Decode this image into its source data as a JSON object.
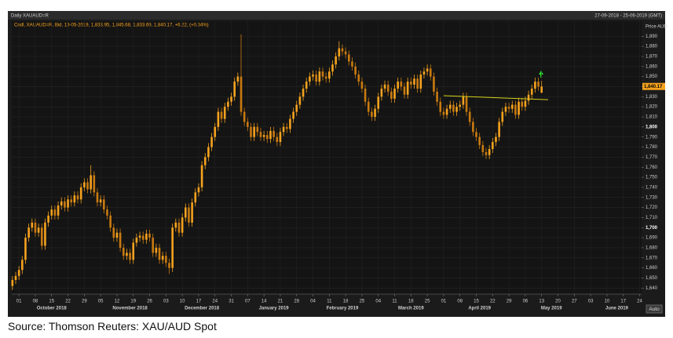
{
  "chart_data": {
    "type": "candlestick",
    "title": "Daily XAUAUD=R",
    "date_range": "27-09-2018 - 25-06-2019 (GMT)",
    "legend": "Cndl, XAUAUD=R, Bid, 13-05-2019, 1,833.95, 1,845.68, 1,833.69, 1,840.17, +6.22, (+0.34%)",
    "y_label": "Price AUD",
    "source": "Source: Thomson Reuters:  XAU/AUD Spot",
    "auto_button": "Auto",
    "up_color": "#f5a21e",
    "down_color": "#c97a10",
    "grid": true,
    "x": [
      -2,
      -1,
      0,
      1,
      2,
      3,
      4,
      5,
      6,
      7,
      8,
      9,
      10,
      11,
      12,
      13,
      14,
      15,
      16,
      17,
      18,
      19,
      20,
      21,
      22,
      23,
      24,
      25,
      26,
      27,
      28,
      29,
      30,
      31,
      32,
      33,
      34,
      35,
      36,
      37,
      38,
      39,
      40,
      41,
      42,
      43,
      44,
      45,
      46,
      47,
      48,
      49,
      50,
      51,
      52,
      53,
      54,
      55,
      56,
      57,
      58,
      59,
      60,
      61,
      62,
      63,
      64,
      65,
      66,
      67,
      68,
      69,
      70,
      71,
      72,
      73,
      74,
      75,
      76,
      77,
      78,
      79,
      80,
      81,
      82,
      83,
      84,
      85,
      86,
      87,
      88,
      89,
      90,
      91,
      92,
      93,
      94,
      95,
      96,
      97,
      98,
      99,
      100,
      101,
      102,
      103,
      104,
      105,
      106,
      107,
      108,
      109,
      110,
      111,
      112,
      113,
      114,
      115,
      116,
      117,
      118,
      119,
      120,
      121,
      122,
      123,
      124,
      125,
      126,
      127,
      128,
      129,
      130,
      131,
      132,
      133,
      134,
      135,
      136,
      137,
      138,
      139,
      140,
      141,
      142,
      143,
      144,
      145,
      146,
      147,
      148,
      149,
      150,
      151,
      152,
      153,
      154,
      155,
      156,
      157,
      158,
      159,
      160
    ],
    "open": [
      1642,
      1648,
      1652,
      1658,
      1668,
      1690,
      1700,
      1705,
      1695,
      1700,
      1682,
      1705,
      1712,
      1718,
      1712,
      1722,
      1726,
      1720,
      1728,
      1725,
      1732,
      1728,
      1740,
      1745,
      1738,
      1752,
      1735,
      1725,
      1728,
      1718,
      1712,
      1700,
      1690,
      1695,
      1680,
      1672,
      1675,
      1668,
      1685,
      1690,
      1692,
      1688,
      1694,
      1690,
      1675,
      1680,
      1668,
      1672,
      1665,
      1660,
      1700,
      1705,
      1695,
      1710,
      1720,
      1705,
      1725,
      1735,
      1740,
      1762,
      1770,
      1780,
      1790,
      1800,
      1815,
      1808,
      1820,
      1825,
      1830,
      1845,
      1850,
      1815,
      1805,
      1800,
      1790,
      1800,
      1795,
      1790,
      1792,
      1788,
      1796,
      1790,
      1785,
      1795,
      1800,
      1798,
      1808,
      1815,
      1822,
      1830,
      1838,
      1845,
      1850,
      1852,
      1845,
      1855,
      1850,
      1848,
      1855,
      1862,
      1870,
      1878,
      1875,
      1872,
      1865,
      1860,
      1852,
      1845,
      1838,
      1825,
      1815,
      1810,
      1818,
      1830,
      1838,
      1842,
      1835,
      1828,
      1838,
      1845,
      1840,
      1832,
      1845,
      1842,
      1848,
      1838,
      1852,
      1855,
      1858,
      1850,
      1835,
      1825,
      1815,
      1812,
      1818,
      1822,
      1815,
      1820,
      1822,
      1830,
      1815,
      1805,
      1795,
      1790,
      1782,
      1775,
      1772,
      1778,
      1785,
      1790,
      1805,
      1815,
      1820,
      1818,
      1822,
      1812,
      1825,
      1820,
      1826,
      1832,
      1838,
      1845,
      1833.95
    ],
    "high": [
      1652,
      1656,
      1662,
      1672,
      1694,
      1704,
      1709,
      1709,
      1704,
      1704,
      1709,
      1716,
      1722,
      1722,
      1726,
      1730,
      1730,
      1732,
      1732,
      1736,
      1736,
      1744,
      1749,
      1749,
      1762,
      1756,
      1739,
      1732,
      1732,
      1722,
      1716,
      1704,
      1699,
      1699,
      1684,
      1679,
      1679,
      1689,
      1694,
      1696,
      1696,
      1698,
      1698,
      1694,
      1684,
      1684,
      1676,
      1676,
      1669,
      1704,
      1709,
      1709,
      1714,
      1724,
      1724,
      1729,
      1739,
      1744,
      1766,
      1774,
      1784,
      1794,
      1804,
      1819,
      1819,
      1824,
      1829,
      1834,
      1849,
      1854,
      1892,
      1819,
      1809,
      1804,
      1804,
      1804,
      1799,
      1796,
      1796,
      1800,
      1800,
      1794,
      1799,
      1804,
      1804,
      1812,
      1819,
      1826,
      1834,
      1842,
      1849,
      1854,
      1856,
      1856,
      1859,
      1859,
      1854,
      1859,
      1866,
      1874,
      1885,
      1882,
      1879,
      1876,
      1869,
      1864,
      1856,
      1849,
      1842,
      1829,
      1819,
      1822,
      1834,
      1842,
      1846,
      1846,
      1839,
      1842,
      1849,
      1849,
      1844,
      1849,
      1849,
      1852,
      1852,
      1856,
      1859,
      1862,
      1862,
      1854,
      1839,
      1829,
      1819,
      1822,
      1826,
      1826,
      1824,
      1826,
      1834,
      1834,
      1819,
      1809,
      1799,
      1794,
      1786,
      1779,
      1782,
      1789,
      1794,
      1809,
      1819,
      1824,
      1824,
      1826,
      1826,
      1829,
      1829,
      1830,
      1836,
      1842,
      1849,
      1849,
      1845.68
    ],
    "low": [
      1638,
      1644,
      1648,
      1654,
      1664,
      1686,
      1696,
      1691,
      1691,
      1678,
      1678,
      1701,
      1708,
      1708,
      1708,
      1718,
      1716,
      1716,
      1721,
      1721,
      1724,
      1724,
      1736,
      1734,
      1734,
      1731,
      1721,
      1721,
      1714,
      1708,
      1696,
      1686,
      1686,
      1676,
      1668,
      1668,
      1664,
      1664,
      1681,
      1686,
      1684,
      1684,
      1686,
      1671,
      1671,
      1664,
      1664,
      1661,
      1654,
      1656,
      1696,
      1691,
      1691,
      1706,
      1701,
      1701,
      1721,
      1731,
      1736,
      1758,
      1766,
      1776,
      1786,
      1796,
      1804,
      1804,
      1816,
      1821,
      1826,
      1841,
      1811,
      1801,
      1796,
      1786,
      1786,
      1791,
      1786,
      1786,
      1784,
      1784,
      1786,
      1781,
      1781,
      1791,
      1794,
      1794,
      1804,
      1811,
      1818,
      1826,
      1834,
      1841,
      1846,
      1841,
      1841,
      1846,
      1844,
      1844,
      1851,
      1858,
      1866,
      1871,
      1868,
      1861,
      1856,
      1848,
      1841,
      1834,
      1821,
      1811,
      1806,
      1806,
      1814,
      1826,
      1834,
      1831,
      1824,
      1824,
      1834,
      1836,
      1828,
      1828,
      1838,
      1838,
      1834,
      1834,
      1848,
      1851,
      1846,
      1831,
      1821,
      1811,
      1808,
      1808,
      1814,
      1811,
      1811,
      1816,
      1818,
      1811,
      1801,
      1791,
      1786,
      1778,
      1771,
      1768,
      1768,
      1774,
      1781,
      1786,
      1801,
      1811,
      1814,
      1814,
      1808,
      1808,
      1816,
      1816,
      1822,
      1828,
      1834,
      1836,
      1833.69
    ],
    "close": [
      1648,
      1652,
      1658,
      1668,
      1690,
      1700,
      1705,
      1695,
      1700,
      1682,
      1705,
      1712,
      1718,
      1712,
      1722,
      1726,
      1720,
      1728,
      1725,
      1732,
      1728,
      1740,
      1745,
      1738,
      1752,
      1735,
      1725,
      1728,
      1718,
      1712,
      1700,
      1690,
      1695,
      1680,
      1672,
      1675,
      1668,
      1685,
      1690,
      1692,
      1688,
      1694,
      1690,
      1675,
      1680,
      1668,
      1672,
      1665,
      1660,
      1700,
      1705,
      1695,
      1710,
      1720,
      1705,
      1725,
      1735,
      1740,
      1762,
      1770,
      1780,
      1790,
      1800,
      1815,
      1808,
      1820,
      1825,
      1830,
      1845,
      1850,
      1815,
      1805,
      1800,
      1790,
      1800,
      1795,
      1790,
      1792,
      1788,
      1796,
      1790,
      1785,
      1795,
      1800,
      1798,
      1808,
      1815,
      1822,
      1830,
      1838,
      1845,
      1850,
      1852,
      1845,
      1855,
      1850,
      1848,
      1855,
      1862,
      1870,
      1878,
      1875,
      1872,
      1865,
      1860,
      1852,
      1845,
      1838,
      1825,
      1815,
      1810,
      1818,
      1830,
      1838,
      1842,
      1835,
      1828,
      1838,
      1845,
      1840,
      1832,
      1845,
      1842,
      1848,
      1838,
      1852,
      1855,
      1858,
      1850,
      1835,
      1825,
      1815,
      1812,
      1818,
      1822,
      1815,
      1820,
      1822,
      1830,
      1815,
      1805,
      1795,
      1790,
      1782,
      1775,
      1772,
      1778,
      1785,
      1790,
      1805,
      1815,
      1820,
      1818,
      1822,
      1812,
      1825,
      1820,
      1826,
      1832,
      1838,
      1845,
      1840,
      1840.17
    ],
    "price_tag": {
      "value": 1840.17,
      "label": "1,840.17"
    },
    "trend_line": {
      "x": [
        130,
        162
      ],
      "values": [
        1831,
        1827
      ],
      "color": "#d4d21a"
    },
    "xlim": [
      -2.2,
      190.6
    ],
    "ylim": [
      1634,
      1905
    ],
    "xticks": [
      {
        "value": 0,
        "label": "01"
      },
      {
        "value": 5,
        "label": "08"
      },
      {
        "value": 10,
        "label": "15"
      },
      {
        "value": 15,
        "label": "22"
      },
      {
        "value": 20,
        "label": "29"
      },
      {
        "value": 25,
        "label": "05"
      },
      {
        "value": 30,
        "label": "12"
      },
      {
        "value": 35,
        "label": "19"
      },
      {
        "value": 40,
        "label": "26"
      },
      {
        "value": 45,
        "label": "03"
      },
      {
        "value": 50,
        "label": "10"
      },
      {
        "value": 55,
        "label": "17"
      },
      {
        "value": 60,
        "label": "24"
      },
      {
        "value": 65,
        "label": "31"
      },
      {
        "value": 70,
        "label": "07"
      },
      {
        "value": 75,
        "label": "14"
      },
      {
        "value": 80,
        "label": "21"
      },
      {
        "value": 85,
        "label": "28"
      },
      {
        "value": 90,
        "label": "04"
      },
      {
        "value": 95,
        "label": "11"
      },
      {
        "value": 100,
        "label": "18"
      },
      {
        "value": 105,
        "label": "25"
      },
      {
        "value": 110,
        "label": "04"
      },
      {
        "value": 115,
        "label": "11"
      },
      {
        "value": 120,
        "label": "18"
      },
      {
        "value": 125,
        "label": "25"
      },
      {
        "value": 130,
        "label": "01"
      },
      {
        "value": 135,
        "label": "08"
      },
      {
        "value": 140,
        "label": "15"
      },
      {
        "value": 145,
        "label": "22"
      },
      {
        "value": 150,
        "label": "29"
      },
      {
        "value": 155,
        "label": "06"
      },
      {
        "value": 160,
        "label": "13"
      },
      {
        "value": 165,
        "label": "20"
      },
      {
        "value": 170,
        "label": "27"
      },
      {
        "value": 175,
        "label": "03"
      },
      {
        "value": 180,
        "label": "10"
      },
      {
        "value": 185,
        "label": "17"
      },
      {
        "value": 190,
        "label": "24"
      }
    ],
    "month_labels": [
      {
        "value": 10,
        "label": "October 2018"
      },
      {
        "value": 34,
        "label": "November 2018"
      },
      {
        "value": 56,
        "label": "December 2018"
      },
      {
        "value": 78,
        "label": "January 2019"
      },
      {
        "value": 99,
        "label": "February 2019"
      },
      {
        "value": 120,
        "label": "March 2019"
      },
      {
        "value": 141,
        "label": "April 2019"
      },
      {
        "value": 163,
        "label": "May 2019"
      },
      {
        "value": 183,
        "label": "June 2019"
      }
    ],
    "yticks": [
      {
        "value": 1640,
        "label": "1,640"
      },
      {
        "value": 1650,
        "label": "1,650"
      },
      {
        "value": 1660,
        "label": "1,660"
      },
      {
        "value": 1670,
        "label": "1,670"
      },
      {
        "value": 1680,
        "label": "1,680"
      },
      {
        "value": 1690,
        "label": "1,690"
      },
      {
        "value": 1700,
        "label": "1,700"
      },
      {
        "value": 1710,
        "label": "1,710"
      },
      {
        "value": 1720,
        "label": "1,720"
      },
      {
        "value": 1730,
        "label": "1,730"
      },
      {
        "value": 1740,
        "label": "1,740"
      },
      {
        "value": 1750,
        "label": "1,750"
      },
      {
        "value": 1760,
        "label": "1,760"
      },
      {
        "value": 1770,
        "label": "1,770"
      },
      {
        "value": 1780,
        "label": "1,780"
      },
      {
        "value": 1790,
        "label": "1,790"
      },
      {
        "value": 1800,
        "label": "1,800"
      },
      {
        "value": 1810,
        "label": "1,810"
      },
      {
        "value": 1820,
        "label": "1,820"
      },
      {
        "value": 1830,
        "label": "1,830"
      },
      {
        "value": 1840,
        "label": "1,840"
      },
      {
        "value": 1850,
        "label": "1,850"
      },
      {
        "value": 1860,
        "label": "1,860"
      },
      {
        "value": 1870,
        "label": "1,870"
      },
      {
        "value": 1880,
        "label": "1,880"
      },
      {
        "value": 1890,
        "label": "1,890"
      }
    ]
  }
}
